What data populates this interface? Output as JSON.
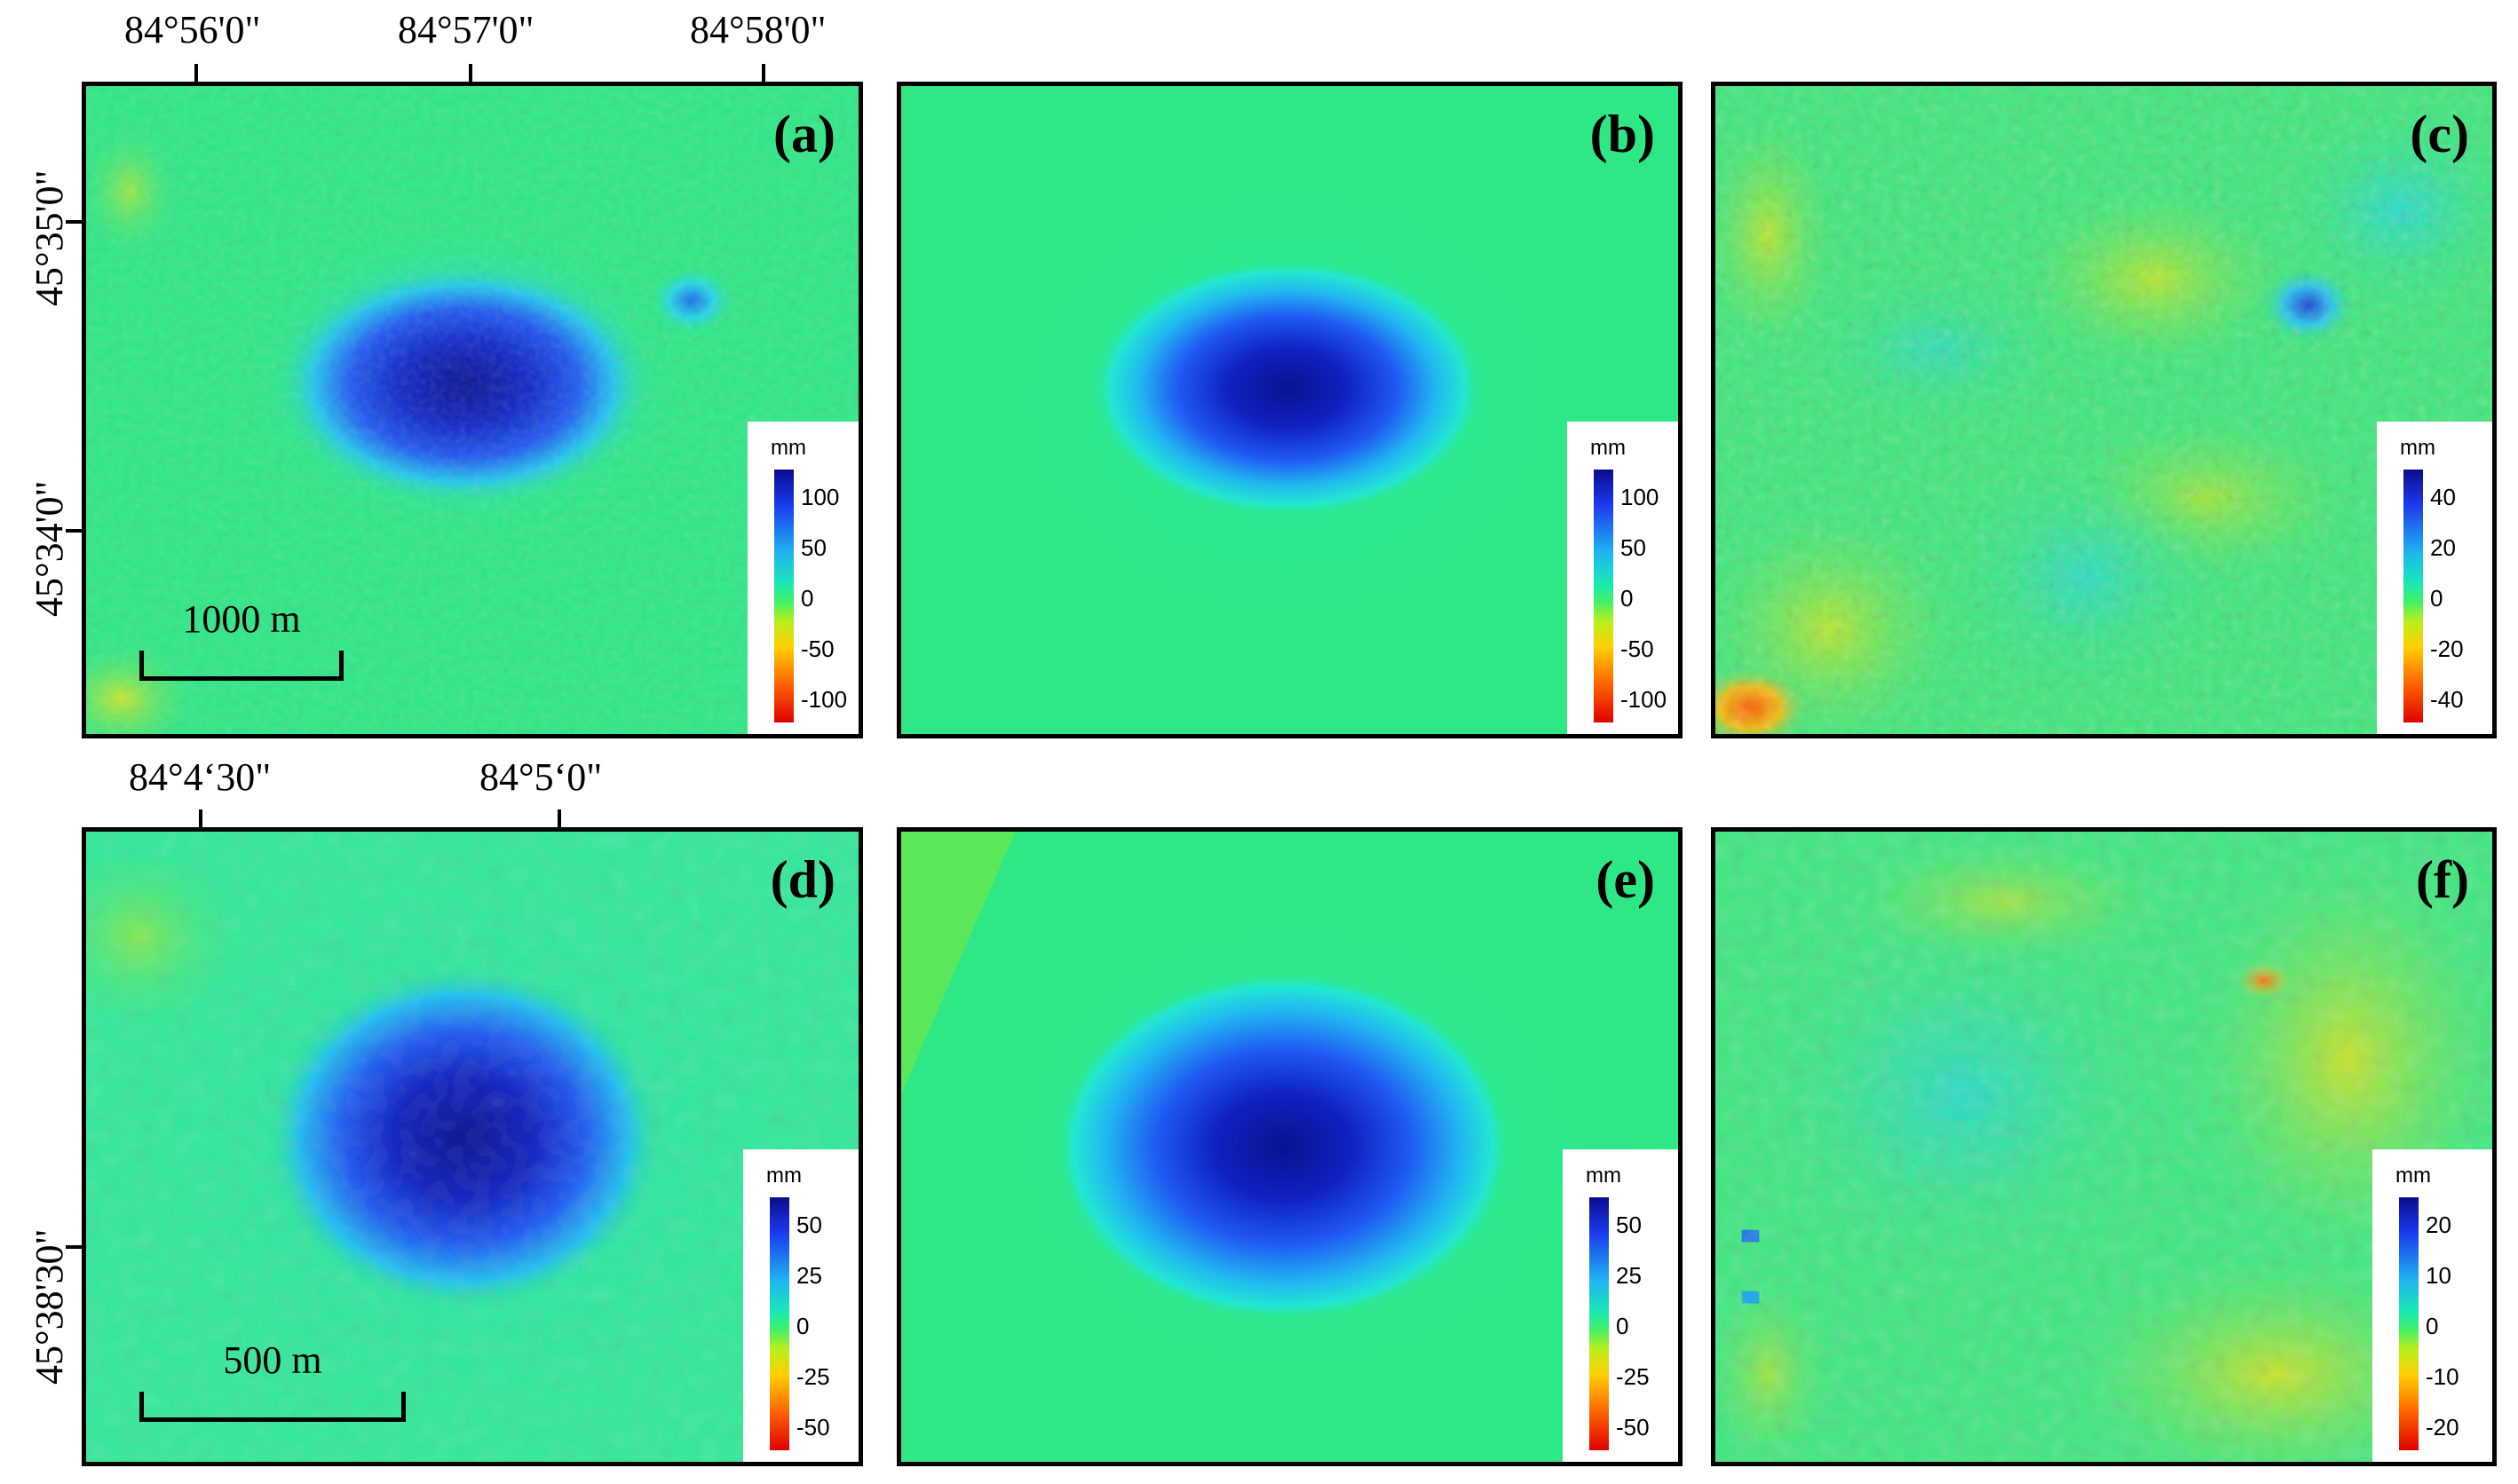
{
  "top_axis": {
    "lon_labels": [
      "84°56'0\"",
      "84°57'0\"",
      "84°58'0\""
    ],
    "lat_labels": [
      "45°35'0\"",
      "45°34'0\""
    ]
  },
  "bottom_axis": {
    "lon_labels": [
      "84°4‘30\"",
      "84°5‘0\""
    ],
    "lat_labels": [
      "45°38'30\""
    ]
  },
  "scalebars": {
    "top": "1000 m",
    "bottom": "500 m"
  },
  "panels": [
    {
      "label": "(a)",
      "unit": "mm",
      "ticks": [
        "100",
        "50",
        "0",
        "-50",
        "-100"
      ]
    },
    {
      "label": "(b)",
      "unit": "mm",
      "ticks": [
        "100",
        "50",
        "0",
        "-50",
        "-100"
      ]
    },
    {
      "label": "(c)",
      "unit": "mm",
      "ticks": [
        "40",
        "20",
        "0",
        "-20",
        "-40"
      ]
    },
    {
      "label": "(d)",
      "unit": "mm",
      "ticks": [
        "50",
        "25",
        "0",
        "-25",
        "-50"
      ]
    },
    {
      "label": "(e)",
      "unit": "mm",
      "ticks": [
        "50",
        "25",
        "0",
        "-25",
        "-50"
      ]
    },
    {
      "label": "(f)",
      "unit": "mm",
      "ticks": [
        "20",
        "10",
        "0",
        "-10",
        "-20"
      ]
    }
  ],
  "colors": {
    "background_green": "#2ee886",
    "deep_blue": "#0a1aa0",
    "mid_blue": "#1f52f0",
    "cyan": "#22e8d8",
    "yellow_green": "#b5ea2a",
    "orange": "#ff8a00"
  }
}
